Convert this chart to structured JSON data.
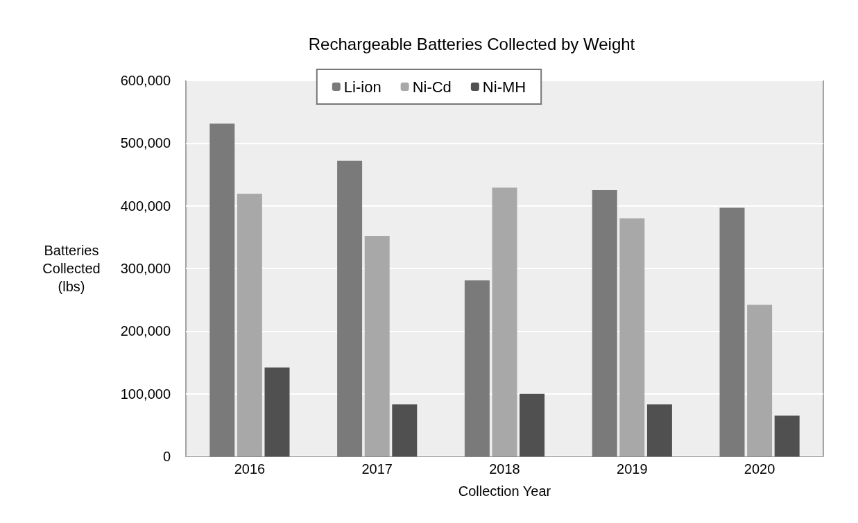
{
  "chart_data": {
    "type": "bar",
    "title": "Rechargeable Batteries Collected by Weight",
    "xlabel": "Collection Year",
    "ylabel": "Batteries Collected (lbs)",
    "categories": [
      "2016",
      "2017",
      "2018",
      "2019",
      "2020"
    ],
    "series": [
      {
        "name": "Li-ion",
        "color": "#7a7a7a",
        "values": [
          531000,
          472000,
          281000,
          425000,
          397000
        ]
      },
      {
        "name": "Ni-Cd",
        "color": "#a8a8a8",
        "values": [
          419000,
          352000,
          429000,
          380000,
          242000
        ]
      },
      {
        "name": "Ni-MH",
        "color": "#505050",
        "values": [
          142000,
          83000,
          100000,
          83000,
          65000
        ]
      }
    ],
    "ylim": [
      0,
      600000
    ],
    "yticks": [
      0,
      {
        "value": 100000,
        "label": "100,000"
      },
      {
        "value": 200000,
        "label": "200,000"
      },
      {
        "value": 300000,
        "label": "300,000"
      },
      {
        "value": 400000,
        "label": "400,000"
      },
      {
        "value": 500000,
        "label": "500,000"
      },
      {
        "value": 600000,
        "label": "600,000"
      }
    ],
    "grid": "y",
    "legend": "top"
  }
}
